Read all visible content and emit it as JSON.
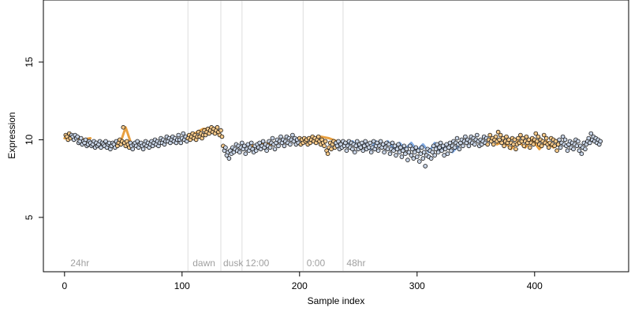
{
  "chart_data": {
    "type": "scatter",
    "title": "",
    "xlabel": "Sample index",
    "ylabel": "Expression",
    "xlim": [
      -18,
      480
    ],
    "ylim": [
      1.5,
      19
    ],
    "x_ticks": [
      0,
      100,
      200,
      300,
      400
    ],
    "y_ticks": [
      5,
      10,
      15
    ],
    "grid": false,
    "legend": "none",
    "colors": {
      "point_fill_default": "#c8d4e6",
      "point_fill_highlight": "#f6c98a",
      "point_stroke": "#111111",
      "line_orange": "#e8a040",
      "line_blue": "#7fa8e0",
      "vline": "#dddddd",
      "annotation_text": "#a0a0a0"
    },
    "vertical_lines": [
      105,
      133,
      151,
      203,
      237
    ],
    "annotations": [
      {
        "label": "24hr",
        "x": 3
      },
      {
        "label": "dawn",
        "x": 107
      },
      {
        "label": "dusk",
        "x": 133
      },
      {
        "label": "12:00",
        "x": 152
      },
      {
        "label": "0:00",
        "x": 204
      },
      {
        "label": "48hr",
        "x": 238
      }
    ],
    "highlight_ranges": [
      [
        0,
        5
      ],
      [
        45,
        55
      ],
      [
        105,
        135
      ],
      [
        200,
        230
      ],
      [
        360,
        420
      ]
    ],
    "orange_segments": [
      {
        "x": [
          0,
          8,
          15,
          22
        ],
        "y": [
          10.1,
          10.2,
          10.0,
          10.1
        ]
      },
      {
        "x": [
          48,
          52,
          56
        ],
        "y": [
          9.9,
          10.8,
          9.9
        ]
      },
      {
        "x": [
          108,
          113,
          118,
          123,
          128,
          133
        ],
        "y": [
          10.3,
          10.5,
          10.7,
          10.7,
          10.5,
          10.3
        ]
      },
      {
        "x": [
          160,
          168,
          176,
          184,
          190
        ],
        "y": [
          9.6,
          9.8,
          9.7,
          9.9,
          9.8
        ]
      },
      {
        "x": [
          205,
          212,
          218,
          225,
          232
        ],
        "y": [
          10.0,
          10.1,
          10.2,
          10.1,
          9.9
        ]
      },
      {
        "x": [
          368,
          374,
          380,
          386,
          392,
          398,
          404,
          410,
          416,
          422
        ],
        "y": [
          9.7,
          9.9,
          9.4,
          9.9,
          9.5,
          10.0,
          9.4,
          9.9,
          9.5,
          9.8
        ]
      }
    ],
    "blue_segments": [
      {
        "x": [
          240,
          245,
          250,
          255,
          260,
          265,
          270,
          275,
          280,
          285,
          290,
          295,
          300,
          305,
          310,
          315,
          320,
          325,
          330,
          335
        ],
        "y": [
          9.6,
          9.9,
          9.5,
          9.9,
          9.4,
          9.9,
          9.5,
          9.9,
          9.4,
          9.8,
          9.4,
          9.8,
          9.3,
          9.7,
          9.2,
          9.8,
          9.3,
          9.7,
          9.2,
          9.6
        ]
      }
    ],
    "points": {
      "count": 460,
      "x_start": 1,
      "x_step": 1,
      "y": [
        10.3,
        10.2,
        10.0,
        10.4,
        10.1,
        10.3,
        10.2,
        10.0,
        10.3,
        10.1,
        10.2,
        9.8,
        9.9,
        10.1,
        9.7,
        9.9,
        9.8,
        10.0,
        9.6,
        9.7,
        9.9,
        9.8,
        9.6,
        9.7,
        9.9,
        9.5,
        9.8,
        9.6,
        9.7,
        9.9,
        9.5,
        9.8,
        9.7,
        9.6,
        9.9,
        9.5,
        9.7,
        9.8,
        9.4,
        9.6,
        9.8,
        9.7,
        9.5,
        9.9,
        9.6,
        9.8,
        10.0,
        9.7,
        9.9,
        10.8,
        9.8,
        9.6,
        9.9,
        9.7,
        9.5,
        9.8,
        9.6,
        9.4,
        9.7,
        9.8,
        9.6,
        9.9,
        9.5,
        9.7,
        9.8,
        9.6,
        9.4,
        9.7,
        9.9,
        9.6,
        9.8,
        9.5,
        9.7,
        9.9,
        9.6,
        9.8,
        10.0,
        9.7,
        9.9,
        9.6,
        9.8,
        10.1,
        9.8,
        10.0,
        9.7,
        9.9,
        10.2,
        9.9,
        10.1,
        9.8,
        10.0,
        10.2,
        9.9,
        10.1,
        9.8,
        10.0,
        10.3,
        10.0,
        9.8,
        10.1,
        10.4,
        10.0,
        10.2,
        9.9,
        10.1,
        10.3,
        10.0,
        10.2,
        10.4,
        10.1,
        10.3,
        10.0,
        10.2,
        10.5,
        10.2,
        10.4,
        10.1,
        10.3,
        10.6,
        10.3,
        10.5,
        10.7,
        10.4,
        10.6,
        10.8,
        10.5,
        10.7,
        10.4,
        10.6,
        10.8,
        10.5,
        10.3,
        10.6,
        10.2,
        9.6,
        9.3,
        9.5,
        9.0,
        9.2,
        8.8,
        9.3,
        9.1,
        9.5,
        9.2,
        9.4,
        9.7,
        9.3,
        9.6,
        9.2,
        9.5,
        9.8,
        9.4,
        9.6,
        9.1,
        9.4,
        9.7,
        9.3,
        9.5,
        9.8,
        9.4,
        9.2,
        9.6,
        9.3,
        9.7,
        9.5,
        9.8,
        9.4,
        9.6,
        9.9,
        9.5,
        9.7,
        9.3,
        9.6,
        9.9,
        9.5,
        9.8,
        10.1,
        9.7,
        9.4,
        9.8,
        10.0,
        9.6,
        9.9,
        10.2,
        9.8,
        10.0,
        9.6,
        9.9,
        10.2,
        9.8,
        10.1,
        9.7,
        10.0,
        10.3,
        9.9,
        10.1,
        9.7,
        10.0,
        9.8,
        10.1,
        9.7,
        10.0,
        9.8,
        10.1,
        9.9,
        10.0,
        9.7,
        10.1,
        9.8,
        10.0,
        10.2,
        9.9,
        10.1,
        9.8,
        10.0,
        10.2,
        9.9,
        9.7,
        10.0,
        9.8,
        9.6,
        9.9,
        9.3,
        9.1,
        9.5,
        9.8,
        9.4,
        9.7,
        9.9,
        9.5,
        9.8,
        9.6,
        9.9,
        9.4,
        9.7,
        9.5,
        9.9,
        9.6,
        9.8,
        9.3,
        9.6,
        9.9,
        9.5,
        9.8,
        9.4,
        9.7,
        9.2,
        9.6,
        9.9,
        9.4,
        9.7,
        9.5,
        9.8,
        9.3,
        9.6,
        9.9,
        9.4,
        9.7,
        9.5,
        9.8,
        9.2,
        9.5,
        9.9,
        9.4,
        9.6,
        9.8,
        9.3,
        9.6,
        9.9,
        9.5,
        9.7,
        9.2,
        9.5,
        9.8,
        9.4,
        9.7,
        9.1,
        9.4,
        9.8,
        9.3,
        9.6,
        9.0,
        9.4,
        9.7,
        9.2,
        9.5,
        8.9,
        9.3,
        9.6,
        9.1,
        9.4,
        8.7,
        9.2,
        9.6,
        9.0,
        9.4,
        8.8,
        9.2,
        9.5,
        8.9,
        9.3,
        8.6,
        9.1,
        9.5,
        8.8,
        9.2,
        8.3,
        9.0,
        9.4,
        8.9,
        9.3,
        8.8,
        9.2,
        9.6,
        9.0,
        9.4,
        9.7,
        9.2,
        9.5,
        9.8,
        9.3,
        9.6,
        9.0,
        9.4,
        9.7,
        9.1,
        9.5,
        9.8,
        9.3,
        9.6,
        9.9,
        9.5,
        9.8,
        10.1,
        9.7,
        9.4,
        9.8,
        10.0,
        9.6,
        9.9,
        10.2,
        9.8,
        10.0,
        9.6,
        9.9,
        10.2,
        9.8,
        10.1,
        9.7,
        10.0,
        10.3,
        9.9,
        9.6,
        10.0,
        9.7,
        9.9,
        10.2,
        9.8,
        10.1,
        9.7,
        10.0,
        10.3,
        9.9,
        10.1,
        9.7,
        10.0,
        10.2,
        9.9,
        10.5,
        10.0,
        10.3,
        9.8,
        10.1,
        9.6,
        9.9,
        10.2,
        9.8,
        10.0,
        9.5,
        9.8,
        10.1,
        9.7,
        10.0,
        9.4,
        9.7,
        10.1,
        9.8,
        10.3,
        9.9,
        10.1,
        9.6,
        9.9,
        10.2,
        9.8,
        10.0,
        9.5,
        9.8,
        10.1,
        9.7,
        10.0,
        10.4,
        9.9,
        10.2,
        9.7,
        10.0,
        9.6,
        9.9,
        10.3,
        9.8,
        10.1,
        9.7,
        9.5,
        9.8,
        10.1,
        9.7,
        10.0,
        9.6,
        9.9,
        9.3,
        9.7,
        10.0,
        9.5,
        9.8,
        10.2,
        9.7,
        10.0,
        9.6,
        9.3,
        9.7,
        9.9,
        9.5,
        9.8,
        9.4,
        9.7,
        10.0,
        9.6,
        9.9,
        9.3,
        9.6,
        9.1,
        9.5,
        9.8,
        9.4,
        9.7,
        9.9,
        10.1,
        9.8,
        10.4,
        10.0,
        10.2,
        9.9,
        10.1,
        9.8,
        10.0,
        9.7,
        9.9
      ]
    }
  }
}
